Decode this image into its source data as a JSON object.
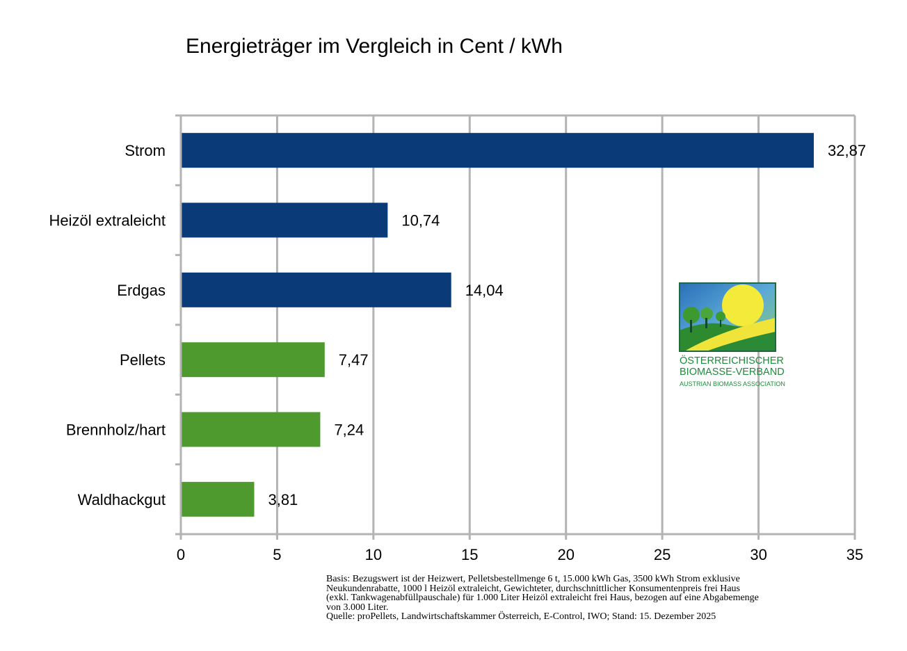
{
  "chart_data": {
    "type": "bar",
    "orientation": "horizontal",
    "title": "Energieträger im Vergleich in Cent / kWh",
    "categories": [
      "Strom",
      "Heizöl extraleicht",
      "Erdgas",
      "Pellets",
      "Brennholz/hart",
      "Waldhackgut"
    ],
    "values": [
      32.87,
      10.74,
      14.04,
      7.47,
      7.24,
      3.81
    ],
    "value_labels": [
      "32,87",
      "10,74",
      "14,04",
      "7,47",
      "7,24",
      "3,81"
    ],
    "bar_colors": [
      "#0a3a78",
      "#0a3a78",
      "#0a3a78",
      "#4e9a2f",
      "#4e9a2f",
      "#4e9a2f"
    ],
    "xlim": [
      0,
      35
    ],
    "xticks": [
      0,
      5,
      10,
      15,
      20,
      25,
      30,
      35
    ],
    "grid": true,
    "grid_color": "#b3b3b3",
    "xlabel": "",
    "ylabel": ""
  },
  "logo": {
    "icon": "biomasse-verband-logo-icon",
    "line1": "ÖSTERREICHISCHER",
    "line2": "BIOMASSE-VERBAND",
    "line3": "AUSTRIAN BIOMASS ASSOCIATION",
    "color": "#1f8a3c"
  },
  "footnote": {
    "line1": "Basis: Bezugswert ist der Heizwert, Pelletsbestellmenge 6 t, 15.000 kWh Gas, 3500 kWh Strom exklusive",
    "line2": "Neukundenrabatte, 1000 l Heizöl extraleicht, Gewichteter, durchschnittlicher Konsumentenpreis frei Haus",
    "line3": "(exkl. Tankwagenabfüllpauschale) für 1.000 Liter Heizöl extraleicht frei Haus, bezogen auf eine Abgabemenge",
    "line4": "von 3.000 Liter.",
    "line5": "Quelle: proPellets, Landwirtschaftskammer Österreich, E-Control, IWO; Stand: 15. Dezember 2025"
  }
}
